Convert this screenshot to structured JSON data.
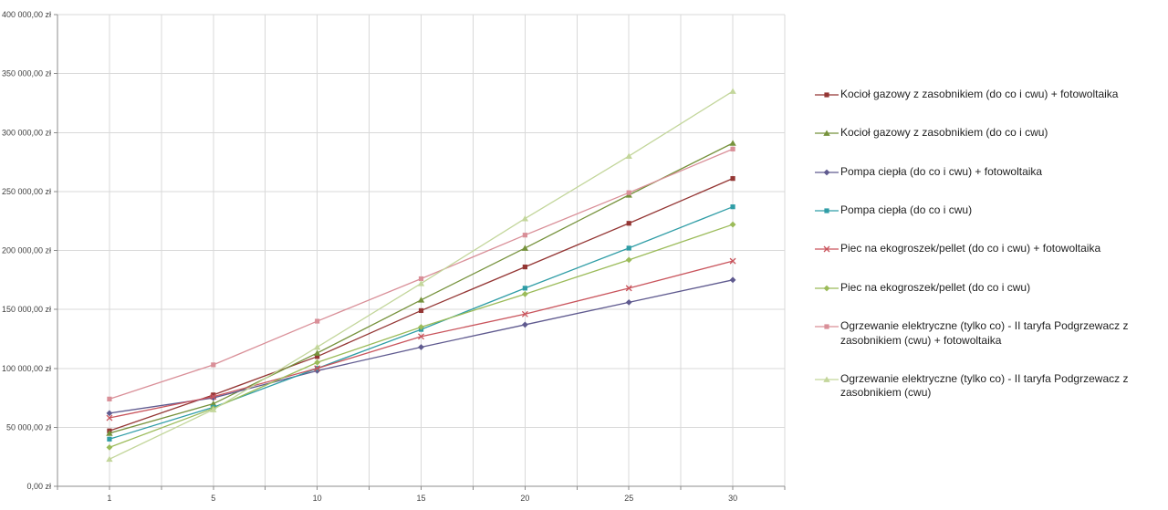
{
  "colors": {
    "background": "#ffffff",
    "gridline": "#d9d9d9",
    "axis": "#8c8c8c",
    "axis_text": "#3f3f3f"
  },
  "chart_data": {
    "type": "line",
    "title": "",
    "xlabel": "",
    "ylabel": "",
    "x": [
      "1",
      "5",
      "10",
      "15",
      "20",
      "25",
      "30"
    ],
    "ylim": [
      0,
      400000
    ],
    "grid": true,
    "legend_position": "right",
    "currency": "zł",
    "yticks": [
      {
        "value": 0,
        "label": "0,00 zł"
      },
      {
        "value": 50000,
        "label": "50 000,00 zł"
      },
      {
        "value": 100000,
        "label": "100 000,00 zł"
      },
      {
        "value": 150000,
        "label": "150 000,00 zł"
      },
      {
        "value": 200000,
        "label": "200 000,00 zł"
      },
      {
        "value": 250000,
        "label": "250 000,00 zł"
      },
      {
        "value": 300000,
        "label": "300 000,00 zł"
      },
      {
        "value": 350000,
        "label": "350 000,00 zł"
      },
      {
        "value": 400000,
        "label": "400 000,00 zł"
      }
    ],
    "series": [
      {
        "name": "Kocioł gazowy z zasobnikiem (do co i cwu) + fotowoltaika",
        "color": "#943634",
        "marker": "square",
        "values": [
          47000,
          77500,
          110000,
          149000,
          186000,
          223000,
          261000
        ]
      },
      {
        "name": "Kocioł gazowy z zasobnikiem (do co i cwu)",
        "color": "#76923C",
        "marker": "triangle",
        "values": [
          45000,
          70000,
          113000,
          158000,
          202000,
          247000,
          291000
        ]
      },
      {
        "name": "Pompa ciepła (do co i cwu) + fotowoltaika",
        "color": "#5F5A8F",
        "marker": "diamond",
        "values": [
          62000,
          75000,
          98000,
          118000,
          137000,
          156000,
          175000
        ]
      },
      {
        "name": "Pompa ciepła (do co i cwu)",
        "color": "#2F9DA6",
        "marker": "square",
        "values": [
          40000,
          67000,
          100000,
          133000,
          168000,
          202000,
          237000
        ]
      },
      {
        "name": "Piec na ekogroszek/pellet (do co i cwu) + fotowoltaika",
        "color": "#C9545C",
        "marker": "x",
        "values": [
          58000,
          76000,
          100000,
          127000,
          146000,
          168000,
          191000
        ]
      },
      {
        "name": "Piec na ekogroszek/pellet (do co i cwu)",
        "color": "#9BBB59",
        "marker": "diamond",
        "values": [
          33000,
          66000,
          105000,
          135000,
          163000,
          192000,
          222000
        ]
      },
      {
        "name": "Ogrzewanie elektryczne (tylko co) - II taryfa Podgrzewacz z zasobnikiem (cwu) + fotowoltaika",
        "color": "#D98F98",
        "marker": "square",
        "values": [
          74000,
          103000,
          140000,
          176000,
          213000,
          249000,
          286000
        ]
      },
      {
        "name": "Ogrzewanie elektryczne (tylko co) - II taryfa Podgrzewacz z zasobnikiem (cwu)",
        "color": "#C3D69B",
        "marker": "triangle",
        "values": [
          23000,
          65000,
          118000,
          172000,
          227000,
          280000,
          335000
        ]
      }
    ]
  }
}
